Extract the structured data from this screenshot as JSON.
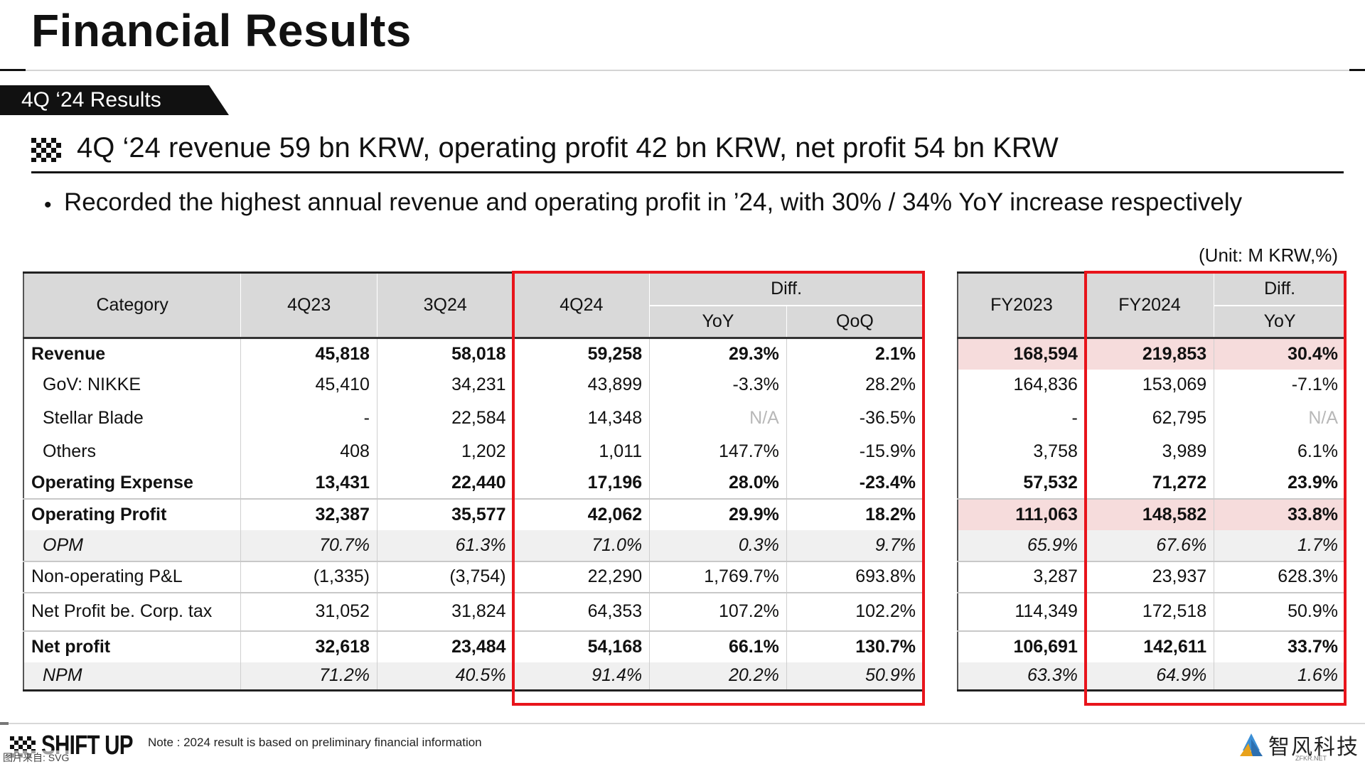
{
  "page": {
    "title": "Financial Results",
    "section_tab": "4Q ‘24 Results",
    "headline": "4Q ‘24 revenue 59 bn KRW, operating profit 42 bn KRW, net profit 54 bn KRW",
    "bullet": "Recorded the highest annual revenue and operating profit in ’24, with 30% / 34% YoY increase respectively",
    "unit": "(Unit: M KRW,%)"
  },
  "quarter_table": {
    "headers": {
      "category": "Category",
      "c1": "4Q23",
      "c2": "3Q24",
      "c3": "4Q24",
      "diff": "Diff.",
      "yoy": "YoY",
      "qoq": "QoQ"
    },
    "rows": [
      {
        "label": "Revenue",
        "v": [
          "45,818",
          "58,018",
          "59,258",
          "29.3%",
          "2.1%"
        ]
      },
      {
        "label": "GoV: NIKKE",
        "v": [
          "45,410",
          "34,231",
          "43,899",
          "-3.3%",
          "28.2%"
        ]
      },
      {
        "label": "Stellar Blade",
        "v": [
          "-",
          "22,584",
          "14,348",
          "N/A",
          "-36.5%"
        ]
      },
      {
        "label": "Others",
        "v": [
          "408",
          "1,202",
          "1,011",
          "147.7%",
          "-15.9%"
        ]
      },
      {
        "label": "Operating Expense",
        "v": [
          "13,431",
          "22,440",
          "17,196",
          "28.0%",
          "-23.4%"
        ]
      },
      {
        "label": "Operating Profit",
        "v": [
          "32,387",
          "35,577",
          "42,062",
          "29.9%",
          "18.2%"
        ]
      },
      {
        "label": "OPM",
        "v": [
          "70.7%",
          "61.3%",
          "71.0%",
          "0.3%",
          "9.7%"
        ]
      },
      {
        "label": "Non-operating P&L",
        "v": [
          "(1,335)",
          "(3,754)",
          "22,290",
          "1,769.7%",
          "693.8%"
        ]
      },
      {
        "label": "Net Profit be. Corp. tax",
        "v": [
          "31,052",
          "31,824",
          "64,353",
          "107.2%",
          "102.2%"
        ]
      },
      {
        "label": "Net profit",
        "v": [
          "32,618",
          "23,484",
          "54,168",
          "66.1%",
          "130.7%"
        ]
      },
      {
        "label": "NPM",
        "v": [
          "71.2%",
          "40.5%",
          "91.4%",
          "20.2%",
          "50.9%"
        ]
      }
    ]
  },
  "annual_table": {
    "headers": {
      "c1": "FY2023",
      "c2": "FY2024",
      "diff": "Diff.",
      "yoy": "YoY"
    },
    "rows": [
      {
        "v": [
          "168,594",
          "219,853",
          "30.4%"
        ]
      },
      {
        "v": [
          "164,836",
          "153,069",
          "-7.1%"
        ]
      },
      {
        "v": [
          "-",
          "62,795",
          "N/A"
        ]
      },
      {
        "v": [
          "3,758",
          "3,989",
          "6.1%"
        ]
      },
      {
        "v": [
          "57,532",
          "71,272",
          "23.9%"
        ]
      },
      {
        "v": [
          "111,063",
          "148,582",
          "33.8%"
        ]
      },
      {
        "v": [
          "65.9%",
          "67.6%",
          "1.7%"
        ]
      },
      {
        "v": [
          "3,287",
          "23,937",
          "628.3%"
        ]
      },
      {
        "v": [
          "114,349",
          "172,518",
          "50.9%"
        ]
      },
      {
        "v": [
          "106,691",
          "142,611",
          "33.7%"
        ]
      },
      {
        "v": [
          "63.3%",
          "64.9%",
          "1.6%"
        ]
      }
    ]
  },
  "footer": {
    "brand": "SHIFT UP",
    "note": "Note : 2024 result is based on preliminary financial information",
    "watermark": "图片来自: SVG",
    "partner_name": "智风科技",
    "partner_url": "ZFKR.NET"
  },
  "colors": {
    "highlight_box": "#e8141b",
    "header_fill": "#d9d9d9",
    "row_highlight": "#f6dcdc",
    "italic_row_fill": "#f0f0f0"
  }
}
